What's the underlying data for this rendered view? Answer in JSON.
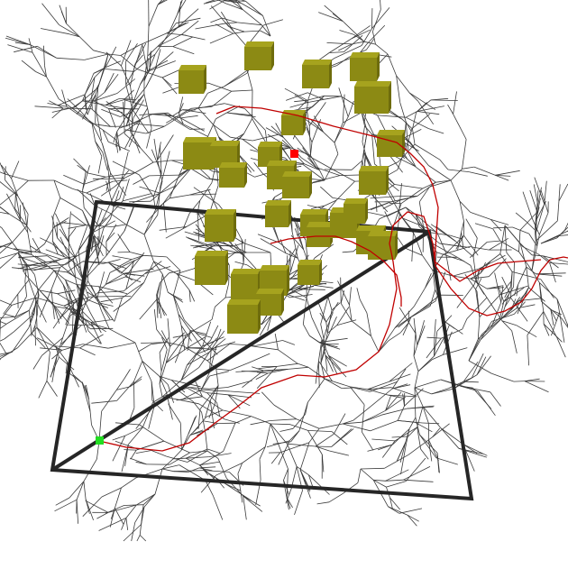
{
  "scene": {
    "background_color": "#ffffff",
    "tree_color": "#3a3a3a",
    "path_color": "#c00000",
    "frame_color": "#262626",
    "obstacle_color": "#8c8a14",
    "obstacle_top_color": "#a6a31e",
    "obstacle_side_color": "#6e6c0c",
    "start_color": "#22dd22",
    "goal_color": "#ff0000",
    "start_marker": "start-marker",
    "goal_marker": "goal-marker"
  }
}
